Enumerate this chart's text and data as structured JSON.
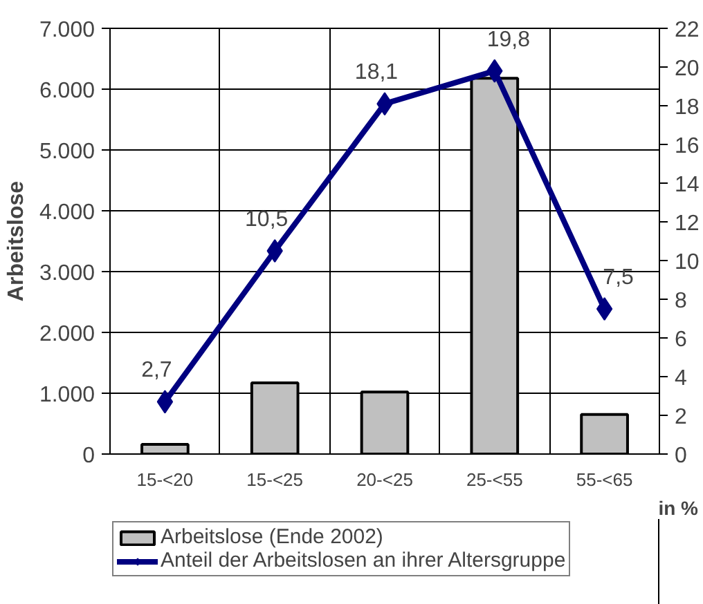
{
  "chart_data": {
    "type": "bar",
    "ylabel": "Arbeitslose",
    "y2label": "in %",
    "categories": [
      "15-<20",
      "15-<25",
      "20-<25",
      "25-<55",
      "55-<65"
    ],
    "series": [
      {
        "name": "Arbeitslose (Ende 2002)",
        "type": "bar",
        "color": "#c0c0c0",
        "values": [
          160,
          1170,
          1020,
          6180,
          650
        ]
      },
      {
        "name": "Anteil der Arbeitslosen an ihrer Altersgruppe",
        "type": "line",
        "axis": "y2",
        "color": "#000080",
        "marker": "diamond",
        "values": [
          2.7,
          10.5,
          18.1,
          19.8,
          7.5
        ],
        "value_labels": [
          "2,7",
          "10,5",
          "18,1",
          "19,8",
          "7,5"
        ]
      }
    ],
    "ylim": [
      0,
      7000
    ],
    "yticks": [
      0,
      {
        "value": 1000,
        "label": "1.000"
      },
      {
        "value": 2000,
        "label": "2.000"
      },
      {
        "value": 3000,
        "label": "3.000"
      },
      {
        "value": 4000,
        "label": "4.000"
      },
      {
        "value": 5000,
        "label": "5.000"
      },
      {
        "value": 6000,
        "label": "6.000"
      },
      {
        "value": 7000,
        "label": "7.000"
      }
    ],
    "y2lim": [
      0,
      22
    ],
    "y2ticks": [
      0,
      2,
      4,
      6,
      8,
      10,
      12,
      14,
      16,
      18,
      20,
      22
    ],
    "grid": true,
    "legend": "bottom"
  }
}
